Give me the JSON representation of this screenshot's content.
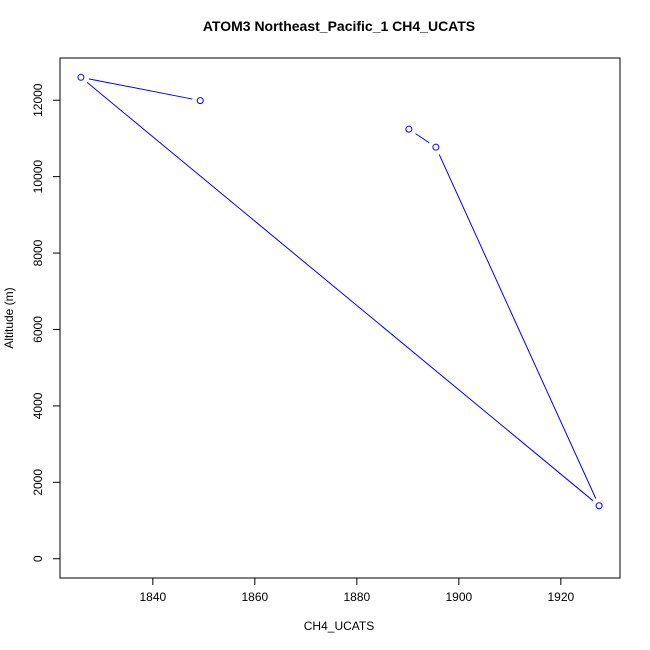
{
  "chart_data": {
    "type": "line",
    "title": "ATOM3 Northeast_Pacific_1 CH4_UCATS",
    "x_label": "CH4_UCATS",
    "y_label": "Altitude (m)",
    "series": [
      {
        "color": "#0000ff",
        "x": [
          1849.3,
          1825.9,
          1927.5,
          1895.5,
          1890.2
        ],
        "values": [
          11990,
          12600,
          1386,
          10771,
          11242
        ]
      }
    ],
    "xlim": [
      1821.8,
      1931.6
    ],
    "ylim": [
      -504,
      13105
    ],
    "xticks": [
      1840,
      1860,
      1880,
      1900,
      1920
    ],
    "yticks": [
      0,
      2000,
      4000,
      6000,
      8000,
      10000,
      12000
    ]
  }
}
